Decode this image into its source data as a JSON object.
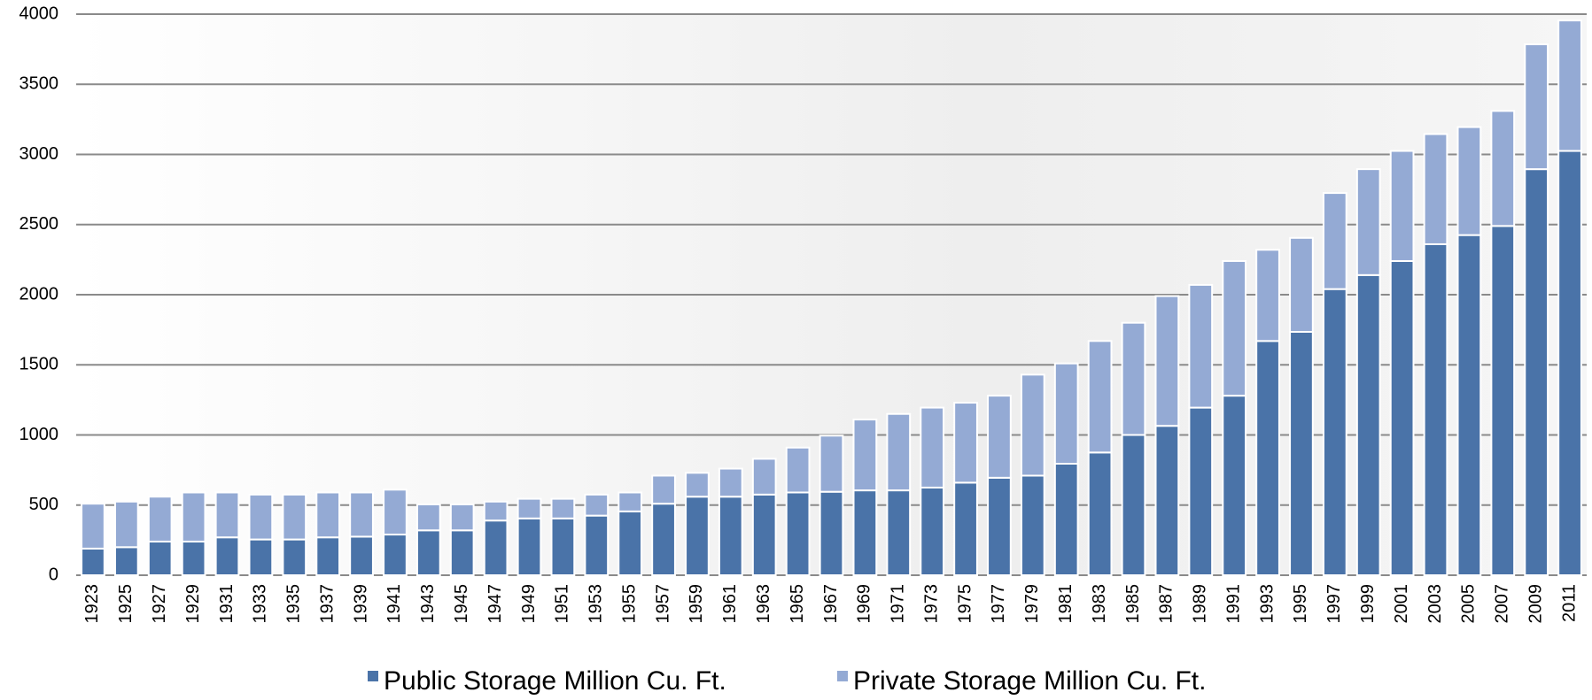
{
  "chart_data": {
    "type": "stacked-bar",
    "categories": [
      "1923",
      "1925",
      "1927",
      "1929",
      "1931",
      "1933",
      "1935",
      "1937",
      "1939",
      "1941",
      "1943",
      "1945",
      "1947",
      "1949",
      "1951",
      "1953",
      "1955",
      "1957",
      "1959",
      "1961",
      "1963",
      "1965",
      "1967",
      "1969",
      "1971",
      "1973",
      "1975",
      "1977",
      "1979",
      "1981",
      "1983",
      "1985",
      "1987",
      "1989",
      "1991",
      "1993",
      "1995",
      "1997",
      "1999",
      "2001",
      "2003",
      "2005",
      "2007",
      "2009",
      "2011"
    ],
    "series": [
      {
        "name": "Public Storage Million Cu. Ft.",
        "color": "#4a73a8",
        "values": [
          190,
          200,
          240,
          240,
          270,
          255,
          255,
          270,
          275,
          290,
          320,
          320,
          390,
          405,
          405,
          425,
          455,
          510,
          560,
          560,
          575,
          590,
          595,
          605,
          605,
          625,
          660,
          695,
          710,
          795,
          875,
          1000,
          1065,
          1195,
          1280,
          1670,
          1735,
          2040,
          2140,
          2240,
          2360,
          2425,
          2490,
          2895,
          3025
        ]
      },
      {
        "name": "Private Storage Million Cu. Ft.",
        "color": "#94aad4",
        "values": [
          320,
          325,
          320,
          350,
          320,
          320,
          320,
          320,
          315,
          320,
          185,
          185,
          135,
          140,
          140,
          150,
          135,
          200,
          170,
          200,
          255,
          320,
          400,
          505,
          545,
          570,
          570,
          585,
          720,
          715,
          795,
          800,
          925,
          875,
          960,
          650,
          670,
          685,
          755,
          785,
          785,
          770,
          820,
          890,
          930
        ]
      }
    ],
    "ylim": [
      0,
      4000
    ],
    "yticks": [
      0,
      500,
      1000,
      1500,
      2000,
      2500,
      3000,
      3500,
      4000
    ],
    "grid": true
  }
}
